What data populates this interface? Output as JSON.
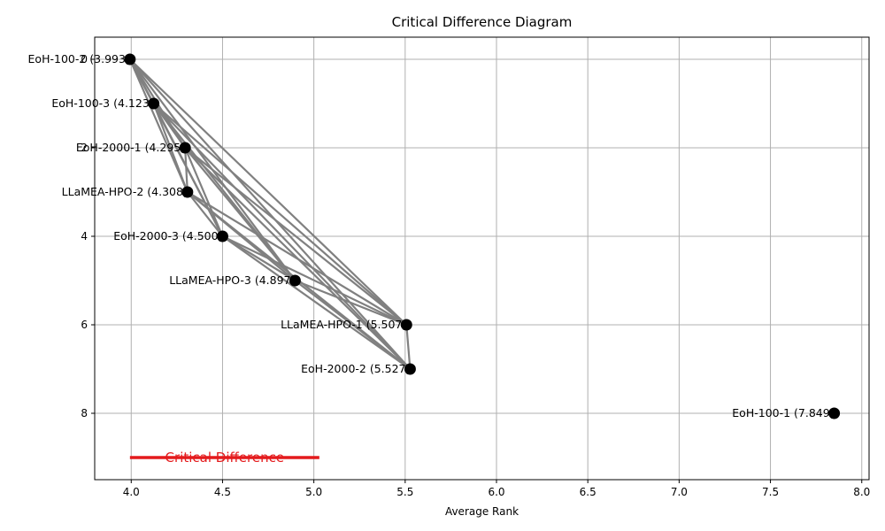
{
  "chart_data": {
    "type": "scatter",
    "title": "Critical Difference Diagram",
    "xlabel": "Average Rank",
    "ylabel": "",
    "xlim": [
      3.8,
      8.04
    ],
    "ylim": [
      9.5,
      -0.5
    ],
    "grid": true,
    "x_ticks": [
      4.0,
      4.5,
      5.0,
      5.5,
      6.0,
      6.5,
      7.0,
      7.5,
      8.0
    ],
    "x_tick_labels": [
      "4.0",
      "4.5",
      "5.0",
      "5.5",
      "6.0",
      "6.5",
      "7.0",
      "7.5",
      "8.0"
    ],
    "y_ticks": [
      0,
      2,
      4,
      6,
      8
    ],
    "y_tick_labels": [
      "0",
      "2",
      "4",
      "6",
      "8"
    ],
    "points": [
      {
        "label": "EoH-100-2 (3.993)",
        "x": 3.993,
        "y": 0
      },
      {
        "label": "EoH-100-3 (4.123)",
        "x": 4.123,
        "y": 1
      },
      {
        "label": "EoH-2000-1 (4.295)",
        "x": 4.295,
        "y": 2
      },
      {
        "label": "LLaMEA-HPO-2 (4.308)",
        "x": 4.308,
        "y": 3
      },
      {
        "label": "EoH-2000-3 (4.500)",
        "x": 4.5,
        "y": 4
      },
      {
        "label": "LLaMEA-HPO-3 (4.897)",
        "x": 4.897,
        "y": 5
      },
      {
        "label": "LLaMEA-HPO-1 (5.507)",
        "x": 5.507,
        "y": 6
      },
      {
        "label": "EoH-2000-2 (5.527)",
        "x": 5.527,
        "y": 7
      },
      {
        "label": "EoH-100-1 (7.849)",
        "x": 7.849,
        "y": 8
      }
    ],
    "connections": [
      [
        0,
        1
      ],
      [
        0,
        2
      ],
      [
        0,
        3
      ],
      [
        0,
        4
      ],
      [
        0,
        5
      ],
      [
        0,
        6
      ],
      [
        0,
        7
      ],
      [
        1,
        2
      ],
      [
        1,
        3
      ],
      [
        1,
        4
      ],
      [
        1,
        5
      ],
      [
        1,
        6
      ],
      [
        1,
        7
      ],
      [
        2,
        3
      ],
      [
        2,
        4
      ],
      [
        2,
        5
      ],
      [
        2,
        6
      ],
      [
        2,
        7
      ],
      [
        3,
        4
      ],
      [
        3,
        5
      ],
      [
        3,
        6
      ],
      [
        3,
        7
      ],
      [
        4,
        5
      ],
      [
        4,
        6
      ],
      [
        4,
        7
      ],
      [
        5,
        6
      ],
      [
        5,
        7
      ],
      [
        6,
        7
      ]
    ],
    "critical_difference": {
      "label": "Critical Difference",
      "x_start": 3.993,
      "x_end": 5.03,
      "y": 9
    },
    "colors": {
      "points": "#000000",
      "connections": "#808080",
      "critical_difference": "#e41a1c",
      "grid": "#b0b0b0"
    }
  }
}
